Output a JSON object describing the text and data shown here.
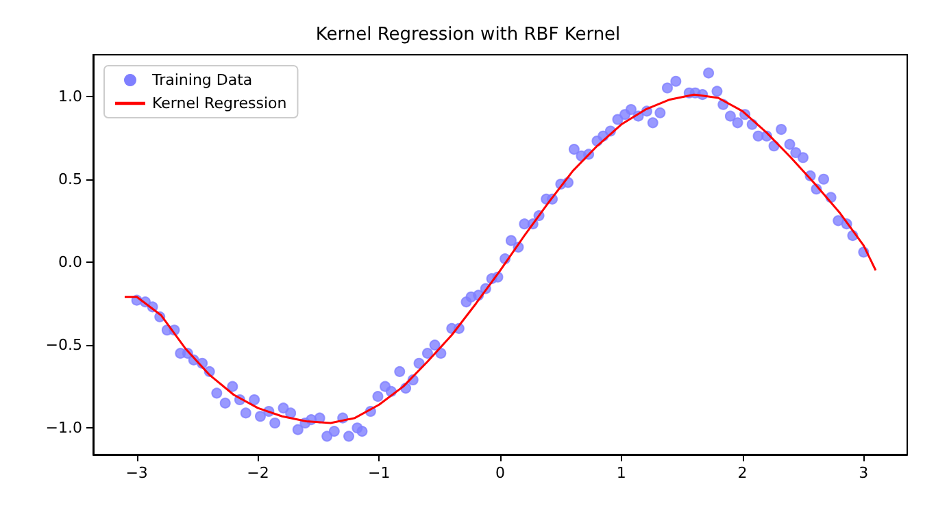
{
  "chart_data": {
    "type": "scatter",
    "title": "Kernel Regression with RBF Kernel",
    "xlim": [
      -3.36,
      3.36
    ],
    "ylim": [
      -1.16,
      1.25
    ],
    "xticks": [
      {
        "value": -3,
        "label": "−3"
      },
      {
        "value": -2,
        "label": "−2"
      },
      {
        "value": -1,
        "label": "−1"
      },
      0,
      1,
      2,
      3
    ],
    "yticks": [
      {
        "value": -1,
        "label": "−1.0"
      },
      {
        "value": -0.5,
        "label": "−0.5"
      },
      {
        "value": 0,
        "label": "0.0"
      },
      {
        "value": 0.5,
        "label": "0.5"
      },
      {
        "value": 1,
        "label": "1.0"
      }
    ],
    "grid": false,
    "legend": "top left",
    "marker": "circle",
    "series": [
      {
        "name": "Training Data",
        "color": "#7f7fff",
        "x": [
          -3.0,
          -2.93,
          -2.87,
          -2.81,
          -2.75,
          -2.69,
          -2.64,
          -2.58,
          -2.53,
          -2.46,
          -2.4,
          -2.34,
          -2.27,
          -2.21,
          -2.15,
          -2.1,
          -2.03,
          -1.98,
          -1.91,
          -1.86,
          -1.79,
          -1.73,
          -1.67,
          -1.61,
          -1.56,
          -1.49,
          -1.43,
          -1.37,
          -1.3,
          -1.25,
          -1.18,
          -1.14,
          -1.07,
          -1.01,
          -0.95,
          -0.9,
          -0.83,
          -0.78,
          -0.72,
          -0.67,
          -0.6,
          -0.54,
          -0.49,
          -0.4,
          -0.34,
          -0.28,
          -0.24,
          -0.18,
          -0.12,
          -0.07,
          -0.02,
          0.04,
          0.09,
          0.15,
          0.2,
          0.27,
          0.32,
          0.38,
          0.43,
          0.5,
          0.56,
          0.61,
          0.67,
          0.73,
          0.8,
          0.85,
          0.91,
          0.97,
          1.03,
          1.08,
          1.14,
          1.21,
          1.26,
          1.32,
          1.38,
          1.45,
          1.56,
          1.61,
          1.67,
          1.72,
          1.79,
          1.84,
          1.9,
          1.96,
          2.02,
          2.08,
          2.13,
          2.2,
          2.26,
          2.32,
          2.39,
          2.44,
          2.5,
          2.56,
          2.61,
          2.67,
          2.73,
          2.79,
          2.86,
          2.91,
          3.0
        ],
        "values": [
          -0.23,
          -0.24,
          -0.27,
          -0.33,
          -0.41,
          -0.41,
          -0.55,
          -0.55,
          -0.59,
          -0.61,
          -0.66,
          -0.79,
          -0.85,
          -0.75,
          -0.83,
          -0.91,
          -0.83,
          -0.93,
          -0.9,
          -0.97,
          -0.88,
          -0.91,
          -1.01,
          -0.97,
          -0.95,
          -0.94,
          -1.05,
          -1.02,
          -0.94,
          -1.05,
          -1.0,
          -1.02,
          -0.9,
          -0.81,
          -0.75,
          -0.78,
          -0.66,
          -0.76,
          -0.71,
          -0.61,
          -0.55,
          -0.5,
          -0.55,
          -0.4,
          -0.4,
          -0.24,
          -0.21,
          -0.2,
          -0.16,
          -0.1,
          -0.09,
          0.02,
          0.13,
          0.09,
          0.23,
          0.23,
          0.28,
          0.38,
          0.38,
          0.47,
          0.48,
          0.68,
          0.64,
          0.65,
          0.73,
          0.76,
          0.79,
          0.86,
          0.89,
          0.92,
          0.88,
          0.91,
          0.84,
          0.9,
          1.05,
          1.09,
          1.02,
          1.02,
          1.01,
          1.14,
          1.03,
          0.95,
          0.88,
          0.84,
          0.89,
          0.83,
          0.76,
          0.76,
          0.7,
          0.8,
          0.71,
          0.66,
          0.63,
          0.52,
          0.44,
          0.5,
          0.39,
          0.25,
          0.23,
          0.16,
          0.06
        ]
      },
      {
        "name": "Kernel Regression",
        "type": "line",
        "color": "#ff0000",
        "marker": "none",
        "line_style": "solid",
        "x": [
          -3.1,
          -3.0,
          -2.8,
          -2.6,
          -2.4,
          -2.2,
          -2.0,
          -1.8,
          -1.6,
          -1.4,
          -1.2,
          -1.0,
          -0.8,
          -0.6,
          -0.4,
          -0.2,
          0,
          0.2,
          0.4,
          0.6,
          0.8,
          1.0,
          1.2,
          1.4,
          1.6,
          1.8,
          2.0,
          2.2,
          2.4,
          2.6,
          2.8,
          3.0,
          3.1
        ],
        "values": [
          -0.21,
          -0.21,
          -0.32,
          -0.52,
          -0.68,
          -0.8,
          -0.88,
          -0.93,
          -0.96,
          -0.97,
          -0.94,
          -0.86,
          -0.75,
          -0.6,
          -0.44,
          -0.25,
          -0.05,
          0.16,
          0.36,
          0.55,
          0.7,
          0.83,
          0.92,
          0.98,
          1.01,
          0.99,
          0.91,
          0.78,
          0.63,
          0.47,
          0.3,
          0.1,
          -0.05
        ]
      }
    ]
  }
}
